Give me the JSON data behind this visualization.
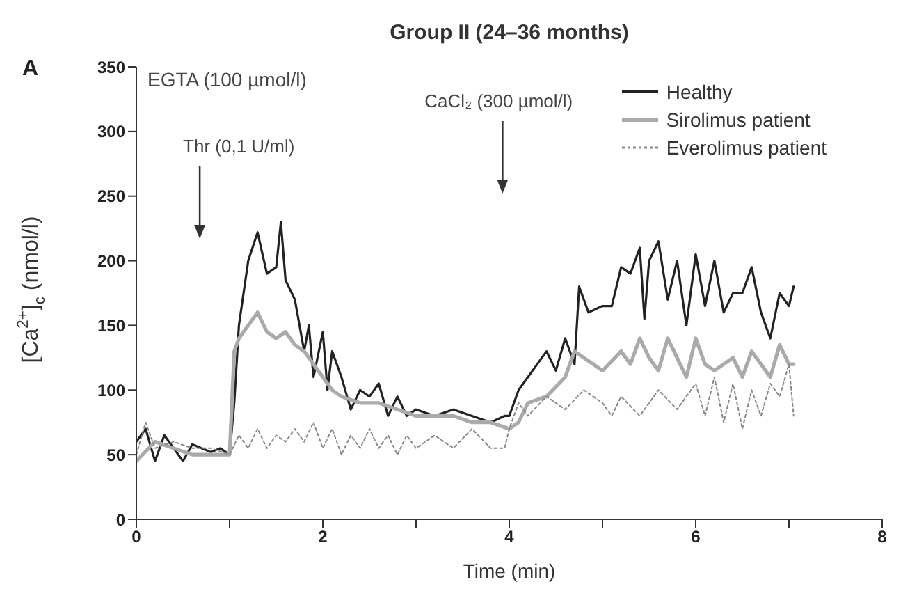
{
  "chart_data": {
    "type": "line",
    "title": "Group II (24–36 months)",
    "xlabel": "Time (min)",
    "ylabel": "[Ca$^{2+}$]$_{c}$ (nmol/l)",
    "annotations": [
      "A",
      "EGTA (100 µmol/l)",
      "Thr (0,1 U/ml)",
      "CaCl₂ (300 µmol/l)"
    ],
    "xlim": [
      0,
      8
    ],
    "xticks": [
      0,
      {
        "value": 1,
        "label": null
      },
      2,
      {
        "value": 3,
        "label": null
      },
      4,
      {
        "value": 5,
        "label": null
      },
      6,
      {
        "value": 7,
        "label": null
      },
      8
    ],
    "ylim": [
      0,
      350
    ],
    "yticks": [
      0,
      50,
      100,
      150,
      200,
      250,
      300,
      350
    ],
    "grid": false,
    "legend": "top right",
    "marker": "none",
    "series": [
      {
        "name": "Healthy",
        "color": "#222222",
        "line_style": "solid",
        "x": [
          0,
          0.1,
          0.2,
          0.3,
          0.4,
          0.5,
          0.6,
          0.7,
          0.8,
          0.9,
          1.0,
          1.05,
          1.1,
          1.2,
          1.3,
          1.4,
          1.5,
          1.55,
          1.6,
          1.7,
          1.8,
          1.85,
          1.9,
          2.0,
          2.05,
          2.1,
          2.2,
          2.3,
          2.4,
          2.5,
          2.6,
          2.7,
          2.8,
          2.9,
          3.0,
          3.2,
          3.4,
          3.6,
          3.8,
          3.95,
          4.0,
          4.1,
          4.2,
          4.3,
          4.4,
          4.5,
          4.6,
          4.7,
          4.75,
          4.85,
          5.0,
          5.1,
          5.2,
          5.3,
          5.4,
          5.45,
          5.5,
          5.6,
          5.7,
          5.8,
          5.9,
          6.0,
          6.1,
          6.2,
          6.3,
          6.4,
          6.5,
          6.6,
          6.7,
          6.8,
          6.9,
          7.0,
          7.05
        ],
        "values": [
          60,
          70,
          45,
          65,
          55,
          45,
          58,
          55,
          52,
          55,
          50,
          90,
          150,
          200,
          222,
          190,
          195,
          230,
          185,
          170,
          130,
          150,
          110,
          145,
          100,
          130,
          110,
          85,
          100,
          95,
          105,
          80,
          95,
          80,
          85,
          80,
          85,
          80,
          75,
          80,
          80,
          100,
          110,
          120,
          130,
          115,
          140,
          120,
          180,
          160,
          165,
          165,
          195,
          190,
          210,
          155,
          200,
          215,
          170,
          200,
          150,
          205,
          165,
          200,
          160,
          175,
          175,
          195,
          160,
          140,
          175,
          165,
          180
        ]
      },
      {
        "name": "Sirolimus patient",
        "color": "#aaaaaa",
        "line_style": "solid",
        "x": [
          0,
          0.2,
          0.4,
          0.6,
          0.8,
          1.0,
          1.05,
          1.1,
          1.2,
          1.3,
          1.4,
          1.5,
          1.6,
          1.7,
          1.8,
          1.9,
          2.0,
          2.1,
          2.2,
          2.4,
          2.6,
          2.8,
          3.0,
          3.2,
          3.4,
          3.6,
          3.8,
          4.0,
          4.1,
          4.2,
          4.4,
          4.6,
          4.7,
          4.8,
          5.0,
          5.2,
          5.3,
          5.4,
          5.5,
          5.6,
          5.7,
          5.8,
          5.9,
          6.0,
          6.1,
          6.2,
          6.4,
          6.5,
          6.6,
          6.7,
          6.8,
          6.9,
          7.0,
          7.05
        ],
        "values": [
          45,
          60,
          55,
          50,
          50,
          50,
          130,
          140,
          150,
          160,
          145,
          140,
          145,
          135,
          130,
          120,
          110,
          100,
          95,
          90,
          90,
          85,
          80,
          80,
          80,
          75,
          75,
          70,
          75,
          90,
          95,
          110,
          130,
          125,
          115,
          130,
          120,
          140,
          125,
          115,
          140,
          125,
          110,
          140,
          120,
          115,
          125,
          110,
          130,
          120,
          110,
          135,
          120,
          120
        ]
      },
      {
        "name": "Everolimus patient",
        "color": "#888888",
        "line_style": "dotted",
        "x": [
          0,
          0.1,
          0.2,
          0.4,
          0.6,
          0.8,
          1.0,
          1.1,
          1.2,
          1.3,
          1.4,
          1.5,
          1.6,
          1.7,
          1.8,
          1.9,
          2.0,
          2.1,
          2.2,
          2.3,
          2.4,
          2.5,
          2.6,
          2.7,
          2.8,
          2.9,
          3.0,
          3.2,
          3.4,
          3.6,
          3.8,
          3.95,
          4.0,
          4.1,
          4.2,
          4.4,
          4.6,
          4.8,
          5.0,
          5.1,
          5.2,
          5.4,
          5.6,
          5.8,
          6.0,
          6.1,
          6.2,
          6.3,
          6.4,
          6.5,
          6.6,
          6.7,
          6.8,
          6.9,
          7.0,
          7.05
        ],
        "values": [
          50,
          75,
          55,
          60,
          55,
          55,
          50,
          65,
          55,
          70,
          55,
          65,
          60,
          70,
          60,
          75,
          55,
          70,
          50,
          65,
          55,
          70,
          55,
          65,
          50,
          65,
          55,
          65,
          55,
          70,
          55,
          55,
          70,
          90,
          80,
          95,
          85,
          100,
          90,
          80,
          95,
          80,
          100,
          85,
          105,
          80,
          110,
          75,
          105,
          70,
          100,
          80,
          105,
          95,
          120,
          80
        ]
      }
    ]
  }
}
